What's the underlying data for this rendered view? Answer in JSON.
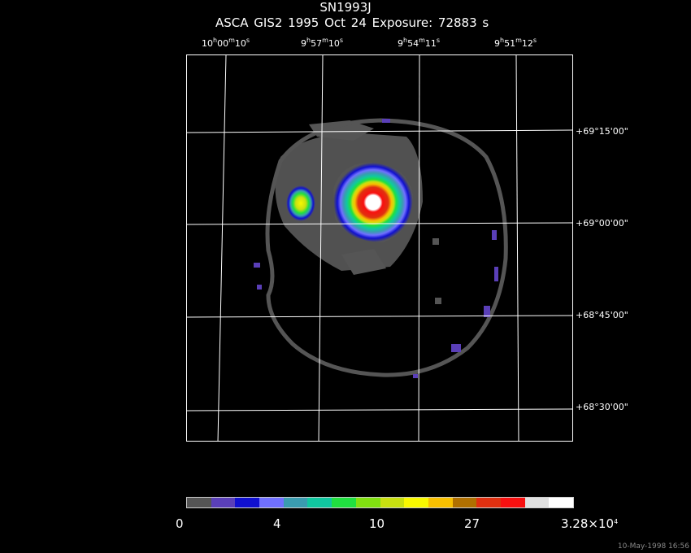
{
  "header": {
    "title": "SN1993J",
    "subtitle": "ASCA GIS2   1995 Oct 24    Exposure: 72883 s"
  },
  "ra_ticks": [
    {
      "h": "10",
      "m": "00",
      "s": "10"
    },
    {
      "h": "9",
      "m": "57",
      "s": "10"
    },
    {
      "h": "9",
      "m": "54",
      "s": "11"
    },
    {
      "h": "9",
      "m": "51",
      "s": "12"
    }
  ],
  "dec_ticks": [
    "+69°15'00\"",
    "+69°00'00\"",
    "+68°45'00\"",
    "+68°30'00\""
  ],
  "colorbar": {
    "colors": [
      "#555555",
      "#5a3fb8",
      "#1010d0",
      "#7070ff",
      "#3a9cb0",
      "#10c8a0",
      "#20e040",
      "#80e010",
      "#c8e010",
      "#f8f800",
      "#f8c000",
      "#b07000",
      "#e03010",
      "#f81010",
      "#e0e0e0",
      "#ffffff"
    ],
    "labels": {
      "l0": "0",
      "l1": "4",
      "l2": "10",
      "l3": "27",
      "l4_base": "3.28×10",
      "l4_exp": "4"
    }
  },
  "timestamp": "10-May-1998 16:56"
}
